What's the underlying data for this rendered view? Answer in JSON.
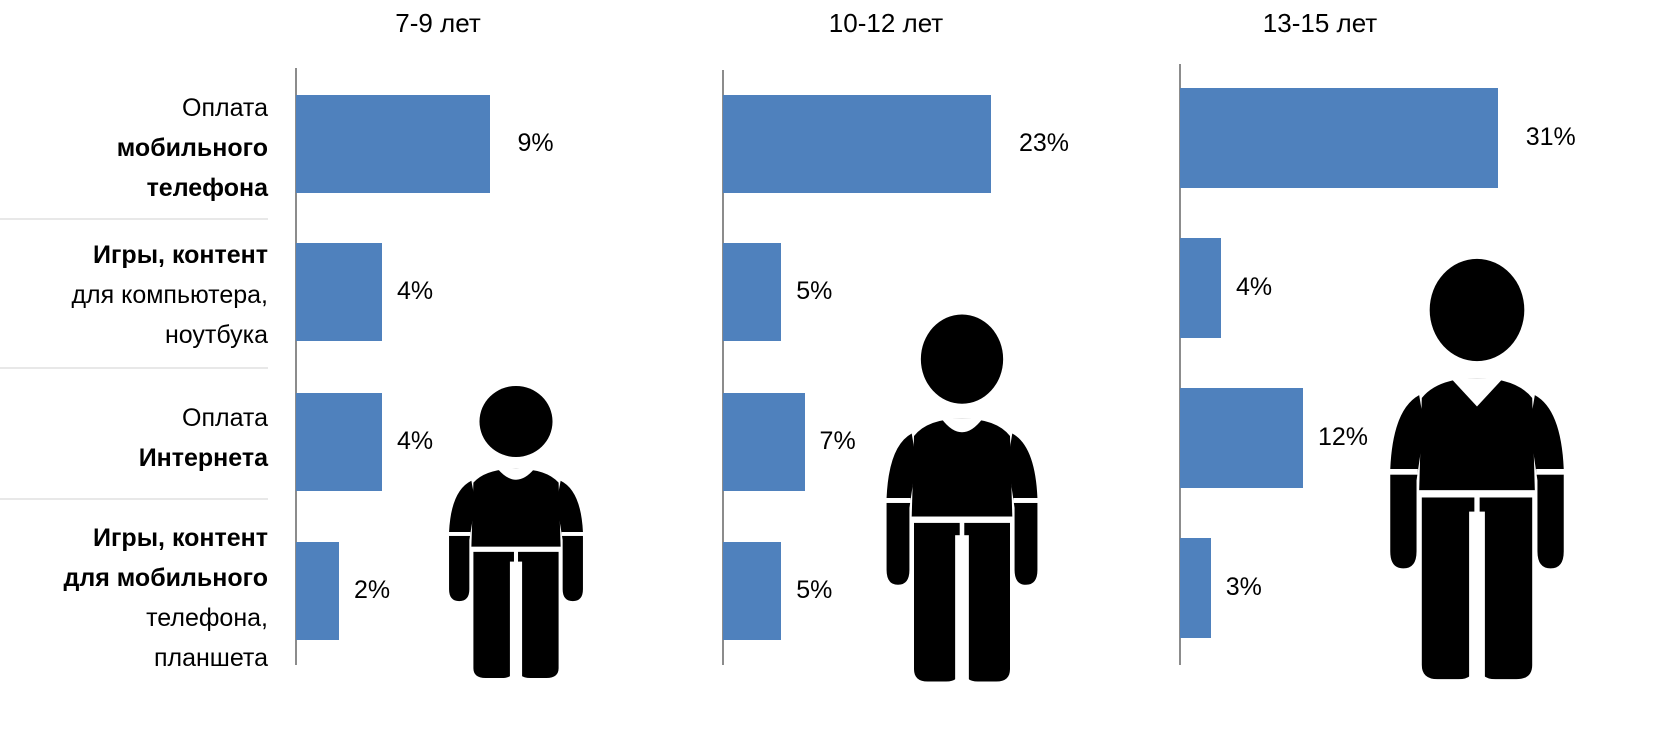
{
  "chart_data": {
    "type": "bar",
    "orientation": "horizontal",
    "categories": [
      {
        "parts": [
          {
            "text": "Оплата",
            "bold": false
          },
          {
            "text": "мобильного",
            "bold": true
          },
          {
            "text": "телефона",
            "bold": true
          }
        ]
      },
      {
        "parts": [
          {
            "text": "Игры, контент",
            "bold": true
          },
          {
            "text": "для компьютера,",
            "bold": false
          },
          {
            "text": "ноутбука",
            "bold": false
          }
        ]
      },
      {
        "parts": [
          {
            "text": "Оплата",
            "bold": false
          },
          {
            "text": "Интернета",
            "bold": true
          }
        ]
      },
      {
        "parts": [
          {
            "text": "Игры, контент",
            "bold": true
          },
          {
            "text": "для мобильного",
            "bold": true
          },
          {
            "text": "телефона,",
            "bold": false
          },
          {
            "text": "планшета",
            "bold": false
          }
        ]
      }
    ],
    "panels": [
      {
        "title": "7-9 лет",
        "values": [
          9,
          4,
          4,
          2
        ],
        "labels": [
          "9%",
          "4%",
          "4%",
          "2%"
        ]
      },
      {
        "title": "10-12 лет",
        "values": [
          23,
          5,
          7,
          5
        ],
        "labels": [
          "23%",
          "5%",
          "7%",
          "5%"
        ]
      },
      {
        "title": "13-15 лет",
        "values": [
          31,
          4,
          12,
          3
        ],
        "labels": [
          "31%",
          "4%",
          "12%",
          "3%"
        ]
      }
    ],
    "unit": "%",
    "bar_color": "#4f81bd",
    "icons": [
      "child-figure-icon",
      "boy-figure-icon",
      "teen-figure-icon"
    ]
  }
}
